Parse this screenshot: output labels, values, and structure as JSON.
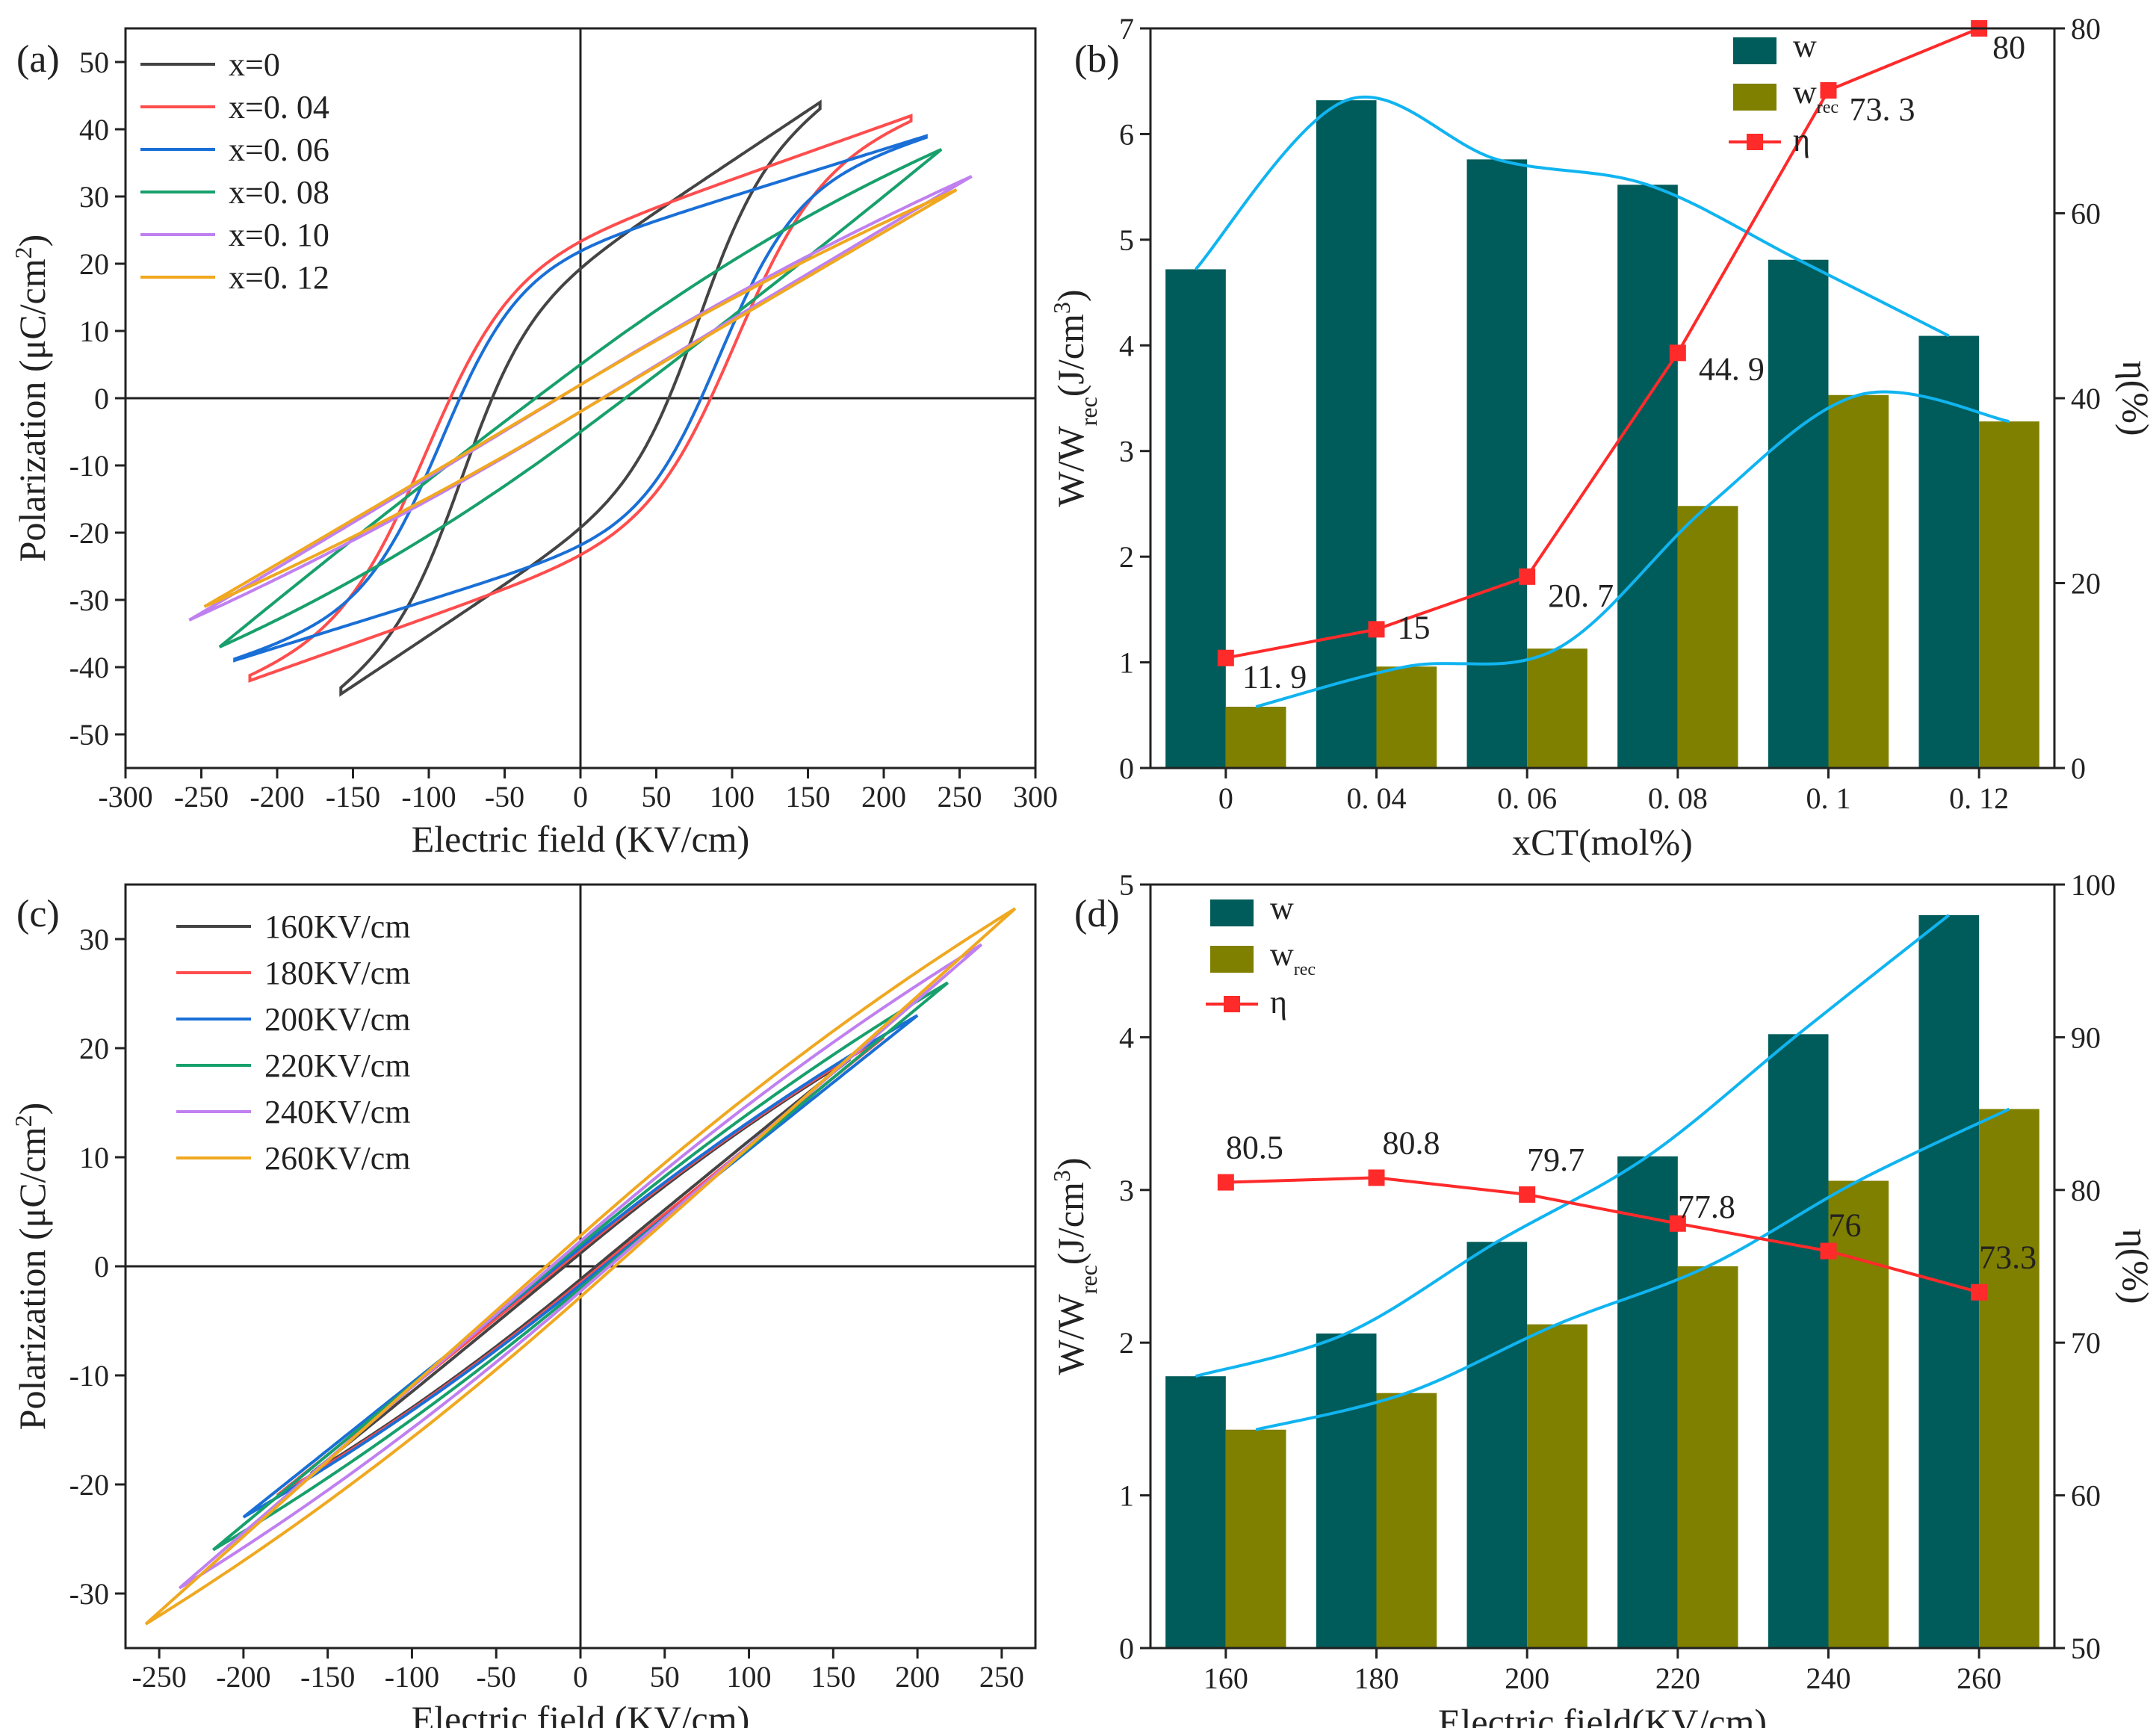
{
  "chart_data": [
    {
      "panel": "(a)",
      "type": "line",
      "title": "",
      "xlabel": "Electric field (KV/cm)",
      "ylabel": "Polarization (μC/cm²)",
      "xlim": [
        -300,
        300
      ],
      "ylim": [
        -55,
        55
      ],
      "xticks": [
        "-300",
        "-250",
        "-200",
        "-150",
        "-100",
        "-50",
        "0",
        "50",
        "100",
        "150",
        "200",
        "250",
        "300"
      ],
      "yticks": [
        "-50",
        "-40",
        "-30",
        "-20",
        "-10",
        "0",
        "10",
        "20",
        "30",
        "40",
        "50"
      ],
      "legend_position": "top-left",
      "series": [
        {
          "name": "x=0",
          "color": "#444444",
          "loop": {
            "emax": 158,
            "pmax": 44,
            "pr": 35,
            "ec": 78,
            "k": 0.15
          }
        },
        {
          "name": "x=0. 04",
          "color": "#ff4d4d",
          "loop": {
            "emax": 218,
            "pmax": 42,
            "pr": 30,
            "ec": 102,
            "k": 0.08
          }
        },
        {
          "name": "x=0. 06",
          "color": "#1a6fd6",
          "loop": {
            "emax": 228,
            "pmax": 39,
            "pr": 25,
            "ec": 92,
            "k": 0.07
          }
        },
        {
          "name": "x=0. 08",
          "color": "#18a06c",
          "loop": {
            "emax": 238,
            "pmax": 37,
            "pr": 5,
            "ec": 30,
            "k": 0.04
          }
        },
        {
          "name": "x=0. 10",
          "color": "#c080f0",
          "loop": {
            "emax": 258,
            "pmax": 33,
            "pr": 2,
            "ec": 15,
            "k": 0.03
          }
        },
        {
          "name": "x=0. 12",
          "color": "#f0a820",
          "loop": {
            "emax": 248,
            "pmax": 31,
            "pr": 2,
            "ec": 15,
            "k": 0.03
          }
        }
      ]
    },
    {
      "panel": "(b)",
      "type": "bar",
      "title": "",
      "xlabel": "xCT(mol%)",
      "ylabel": "W/Wᵣₑ꜀(J/cm³)",
      "ylabel_parts": {
        "main": "W/W",
        "sub": "rec",
        "unit": "(J/cm",
        "sup": "3",
        ")": ")"
      },
      "y2label": "η(%)",
      "categories": [
        "0",
        "0. 04",
        "0. 06",
        "0. 08",
        "0. 1",
        "0. 12"
      ],
      "ylim": [
        0,
        7
      ],
      "y2lim": [
        0,
        80
      ],
      "yticks": [
        "0",
        "1",
        "2",
        "3",
        "4",
        "5",
        "6",
        "7"
      ],
      "y2ticks": [
        "0",
        "20",
        "40",
        "60",
        "80"
      ],
      "series": [
        {
          "name": "w",
          "kind": "bar",
          "color": "#005c5a",
          "values": [
            4.72,
            6.32,
            5.76,
            5.52,
            4.81,
            4.09
          ]
        },
        {
          "name": "w",
          "sub": "rec",
          "kind": "bar",
          "color": "#7f7f00",
          "values": [
            0.58,
            0.96,
            1.13,
            2.48,
            3.53,
            3.28
          ]
        },
        {
          "name": "η",
          "kind": "line",
          "axis": "y2",
          "color": "#ff2a2a",
          "values": [
            11.9,
            15,
            20.7,
            44.9,
            73.3,
            80
          ]
        }
      ],
      "data_labels": [
        "11. 9",
        "15",
        "20. 7",
        "44. 9",
        "73. 3",
        "80"
      ],
      "legend": [
        "w",
        "w",
        "η"
      ],
      "legend_position": "top-center"
    },
    {
      "panel": "(c)",
      "type": "line",
      "title": "",
      "xlabel": "Electric field (KV/cm)",
      "ylabel": "Polarization (μC/cm²)",
      "xlim": [
        -270,
        270
      ],
      "ylim": [
        -35,
        35
      ],
      "xticks": [
        "-250",
        "-200",
        "-150",
        "-100",
        "-50",
        "0",
        "50",
        "100",
        "150",
        "200",
        "250"
      ],
      "yticks": [
        "-30",
        "-20",
        "-10",
        "0",
        "10",
        "20",
        "30"
      ],
      "legend_position": "top-left",
      "series": [
        {
          "name": "160KV/cm",
          "color": "#444444",
          "loop": {
            "emax": 160,
            "pmax": 19,
            "pr": 1.2,
            "ec": 10,
            "k": 0.05
          }
        },
        {
          "name": "180KV/cm",
          "color": "#ff4d4d",
          "loop": {
            "emax": 180,
            "pmax": 21,
            "pr": 1.5,
            "ec": 12,
            "k": 0.05
          }
        },
        {
          "name": "200KV/cm",
          "color": "#1a6fd6",
          "loop": {
            "emax": 200,
            "pmax": 23,
            "pr": 1.7,
            "ec": 14,
            "k": 0.05
          }
        },
        {
          "name": "220KV/cm",
          "color": "#18a06c",
          "loop": {
            "emax": 218,
            "pmax": 26,
            "pr": 2,
            "ec": 16,
            "k": 0.05
          }
        },
        {
          "name": "240KV/cm",
          "color": "#c080f0",
          "loop": {
            "emax": 238,
            "pmax": 29.5,
            "pr": 2.3,
            "ec": 18,
            "k": 0.05
          }
        },
        {
          "name": "260KV/cm",
          "color": "#f0a820",
          "loop": {
            "emax": 258,
            "pmax": 32.8,
            "pr": 2.8,
            "ec": 20,
            "k": 0.05
          }
        }
      ]
    },
    {
      "panel": "(d)",
      "type": "bar",
      "title": "",
      "xlabel": "Electric field(KV/cm)",
      "ylabel": "W/Wᵣₑ꜀(J/cm³)",
      "y2label": "η(%)",
      "categories": [
        "160",
        "180",
        "200",
        "220",
        "240",
        "260"
      ],
      "ylim": [
        0,
        5
      ],
      "y2lim": [
        50,
        100
      ],
      "yticks": [
        "0",
        "1",
        "2",
        "3",
        "4",
        "5"
      ],
      "y2ticks": [
        "50",
        "60",
        "70",
        "80",
        "90",
        "100"
      ],
      "series": [
        {
          "name": "w",
          "kind": "bar",
          "color": "#005c5a",
          "values": [
            1.78,
            2.06,
            2.66,
            3.22,
            4.02,
            4.8
          ]
        },
        {
          "name": "w",
          "sub": "rec",
          "kind": "bar",
          "color": "#7f7f00",
          "values": [
            1.43,
            1.67,
            2.12,
            2.5,
            3.06,
            3.53
          ]
        },
        {
          "name": "η",
          "kind": "line",
          "axis": "y2",
          "color": "#ff2a2a",
          "values": [
            80.5,
            80.8,
            79.7,
            77.8,
            76,
            73.3
          ]
        }
      ],
      "data_labels": [
        "80.5",
        "80.8",
        "79.7",
        "77.8",
        "76",
        "73.3"
      ],
      "legend": [
        "w",
        "w",
        "η"
      ],
      "legend_position": "top-left"
    }
  ],
  "labels": {
    "ylabel_w_main": "W/W",
    "ylabel_w_sub": "rec",
    "ylabel_w_unit": "(J/cm",
    "ylabel_w_sup": "3",
    "ylabel_w_close": ")",
    "ylabel_p_main": "Polarization (μC/cm",
    "ylabel_p_sup": "2",
    "ylabel_p_close": ")",
    "y2label": "η(%)",
    "legend_w": "w",
    "legend_wrec_sub": "rec",
    "legend_eta": "η"
  },
  "colors": {
    "w": "#005c5a",
    "wrec": "#7f7f00",
    "eta": "#ff2a2a",
    "trend": "#10b4f0"
  }
}
